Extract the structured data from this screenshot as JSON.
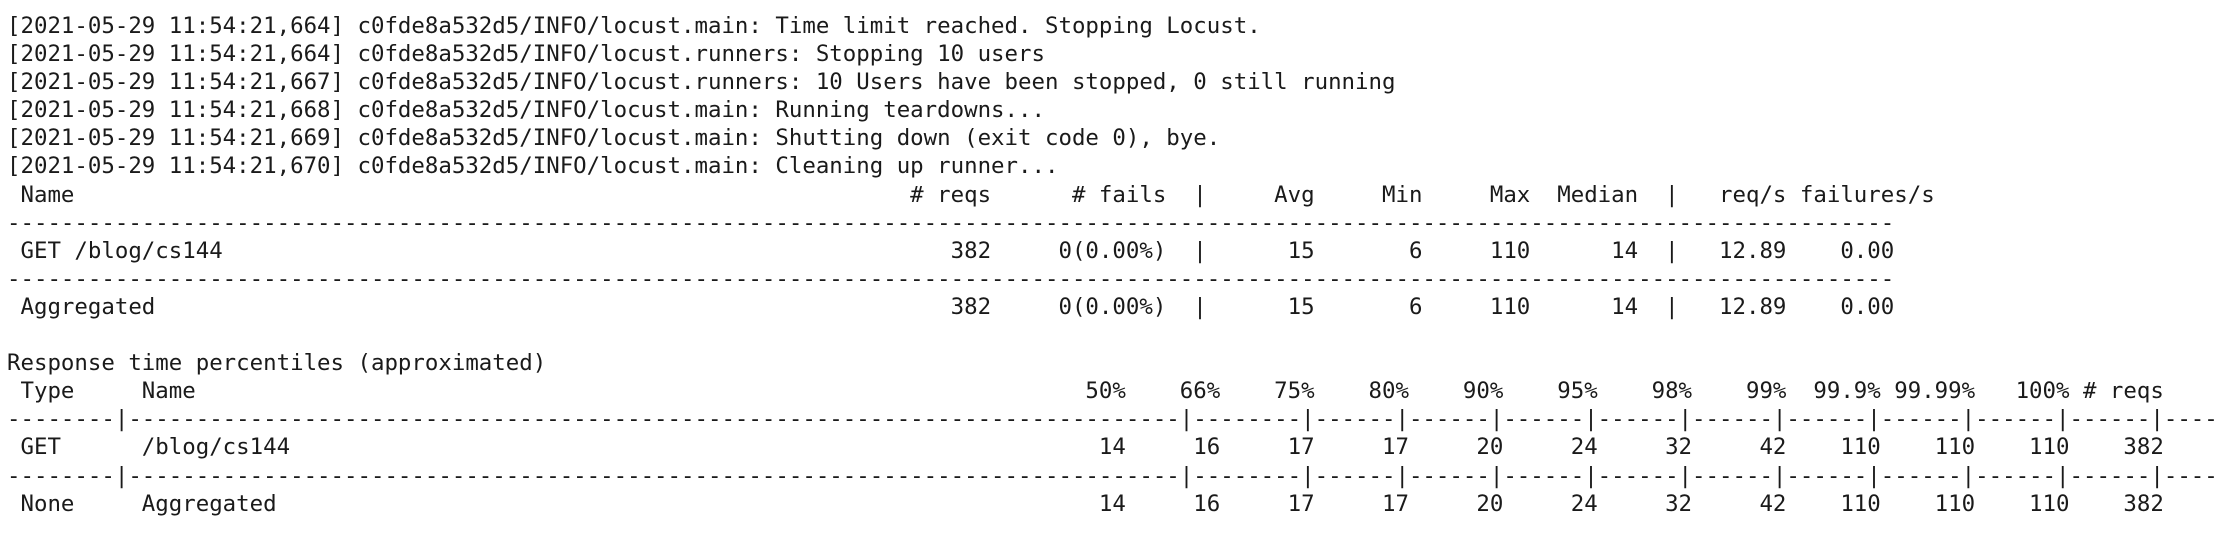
{
  "terminal": {
    "log_lines": [
      "[2021-05-29 11:54:21,664] c0fde8a532d5/INFO/locust.main: Time limit reached. Stopping Locust.",
      "[2021-05-29 11:54:21,664] c0fde8a532d5/INFO/locust.runners: Stopping 10 users",
      "[2021-05-29 11:54:21,667] c0fde8a532d5/INFO/locust.runners: 10 Users have been stopped, 0 still running",
      "[2021-05-29 11:54:21,668] c0fde8a532d5/INFO/locust.main: Running teardowns...",
      "[2021-05-29 11:54:21,669] c0fde8a532d5/INFO/locust.main: Shutting down (exit code 0), bye.",
      "[2021-05-29 11:54:21,670] c0fde8a532d5/INFO/locust.main: Cleaning up runner..."
    ],
    "stats_table": {
      "header": " Name                                                              # reqs      # fails  |     Avg     Min     Max  Median  |   req/s failures/s",
      "separator_1": "--------------------------------------------------------------------------------------------------------------------------------------------",
      "row_1": " GET /blog/cs144                                                      382     0(0.00%)  |      15       6     110      14  |   12.89    0.00",
      "separator_2": "--------------------------------------------------------------------------------------------------------------------------------------------",
      "row_aggregated": " Aggregated                                                           382     0(0.00%)  |      15       6     110      14  |   12.89    0.00"
    },
    "blank_line": " ",
    "percentiles_table": {
      "title": "Response time percentiles (approximated)",
      "header": " Type     Name                                                                  50%    66%    75%    80%    90%    95%    98%    99%  99.9% 99.99%   100% # reqs",
      "separator_1": "--------|------------------------------------------------------------------------------|--------|------|------|------|------|------|------|------|------|------|------|------|",
      "row_1": " GET      /blog/cs144                                                            14     16     17     17     20     24     32     42    110    110    110    382",
      "separator_2": "--------|------------------------------------------------------------------------------|--------|------|------|------|------|------|------|------|------|------|------|------|",
      "row_aggregated": " None     Aggregated                                                             14     16     17     17     20     24     32     42    110    110    110    382"
    }
  }
}
